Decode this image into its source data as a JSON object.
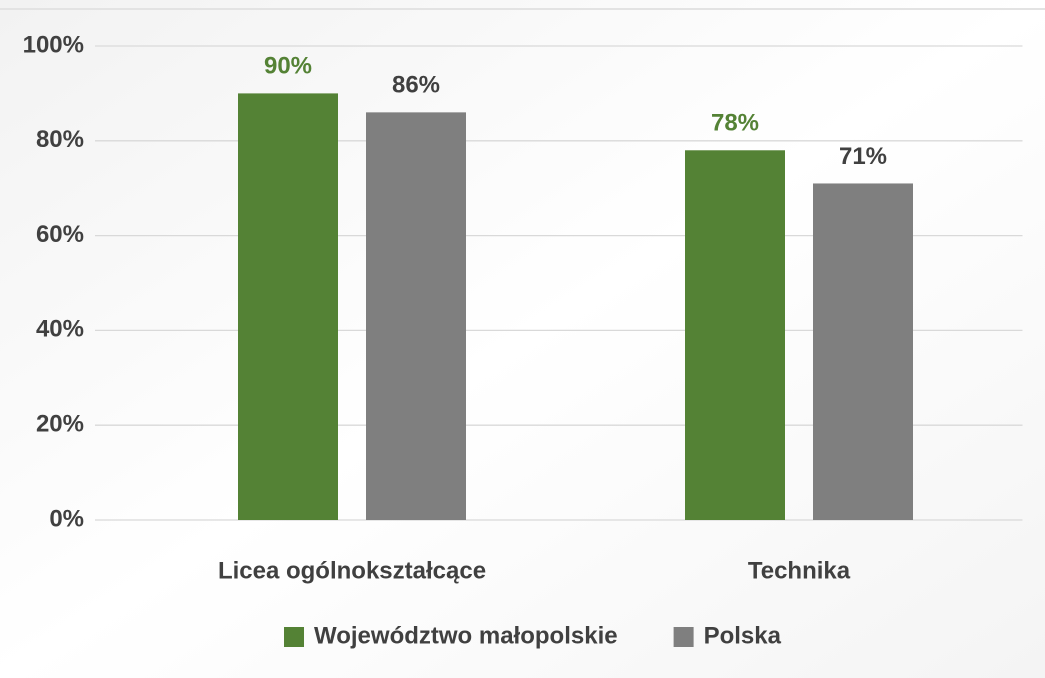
{
  "chart_data": {
    "type": "bar",
    "categories": [
      "Licea ogólnokształcące",
      "Technika"
    ],
    "series": [
      {
        "name": "Województwo małopolskie",
        "color": "#548235",
        "label_color": "#548235",
        "values": [
          90,
          78
        ],
        "value_labels": [
          "90%",
          "78%"
        ]
      },
      {
        "name": "Polska",
        "color": "#7f7f7f",
        "label_color": "#404040",
        "values": [
          86,
          71
        ],
        "value_labels": [
          "86%",
          "71%"
        ]
      }
    ],
    "ylim": [
      0,
      100
    ],
    "yticks": [
      {
        "value": 0,
        "label": "0%"
      },
      {
        "value": 20,
        "label": "20%"
      },
      {
        "value": 40,
        "label": "40%"
      },
      {
        "value": 60,
        "label": "60%"
      },
      {
        "value": 80,
        "label": "80%"
      },
      {
        "value": 100,
        "label": "100%"
      }
    ],
    "grid": true,
    "legend": "bottom"
  }
}
